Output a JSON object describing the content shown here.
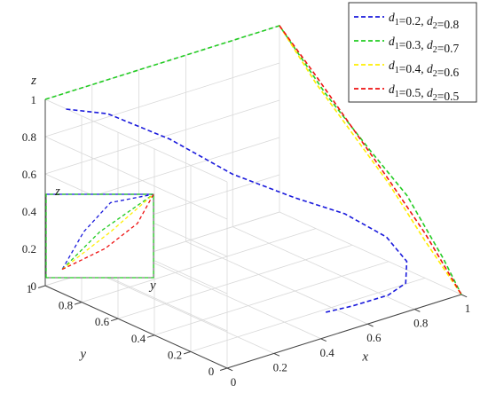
{
  "chart_data": {
    "type": "line",
    "projection": "3d-perspective",
    "xlabel": "x",
    "ylabel": "y",
    "zlabel": "z",
    "xlim": [
      0,
      1
    ],
    "ylim": [
      0,
      1
    ],
    "zlim": [
      0,
      1
    ],
    "x_ticks": [
      "0",
      "0.2",
      "0.4",
      "0.6",
      "0.8",
      "1"
    ],
    "y_ticks": [
      "0",
      "0.2",
      "0.4",
      "0.6",
      "0.8",
      "1"
    ],
    "z_ticks": [
      "0",
      "0.2",
      "0.4",
      "0.6",
      "0.8",
      "1"
    ],
    "grid": true,
    "legend_position": "top-right",
    "series": [
      {
        "name": "d1=0.2, d2=0.8",
        "label_parts": [
          "0.2",
          "0.8"
        ],
        "color": "#1a1adc",
        "style": "dashed",
        "points": [
          [
            0.05,
            0.95,
            0.95
          ],
          [
            0.15,
            0.85,
            0.93
          ],
          [
            0.3,
            0.7,
            0.8
          ],
          [
            0.45,
            0.55,
            0.62
          ],
          [
            0.6,
            0.4,
            0.5
          ],
          [
            0.72,
            0.28,
            0.42
          ],
          [
            0.82,
            0.18,
            0.3
          ],
          [
            0.86,
            0.12,
            0.18
          ],
          [
            0.84,
            0.1,
            0.08
          ],
          [
            0.78,
            0.12,
            0.03
          ],
          [
            0.65,
            0.15,
            0.01
          ],
          [
            0.55,
            0.18,
            0.0
          ]
        ]
      },
      {
        "name": "d1=0.3, d2=0.7",
        "label_parts": [
          "0.3",
          "0.7"
        ],
        "color": "#22cc22",
        "style": "dashed",
        "points": [
          [
            0.0,
            1.0,
            1.0
          ],
          [
            0.3,
            1.0,
            1.0
          ],
          [
            0.6,
            1.0,
            1.0
          ],
          [
            1.0,
            1.0,
            1.0
          ],
          [
            1.0,
            0.75,
            0.75
          ],
          [
            1.0,
            0.5,
            0.55
          ],
          [
            1.0,
            0.3,
            0.4
          ],
          [
            1.0,
            0.1,
            0.15
          ],
          [
            1.0,
            0.0,
            0.0
          ]
        ]
      },
      {
        "name": "d1=0.4, d2=0.6",
        "label_parts": [
          "0.4",
          "0.6"
        ],
        "color": "#ffee00",
        "style": "dashed",
        "points": [
          [
            1.0,
            1.0,
            1.0
          ],
          [
            1.0,
            0.8,
            0.78
          ],
          [
            1.0,
            0.6,
            0.6
          ],
          [
            1.0,
            0.4,
            0.42
          ],
          [
            1.0,
            0.2,
            0.2
          ],
          [
            1.0,
            0.0,
            0.0
          ]
        ]
      },
      {
        "name": "d1=0.5, d2=0.5",
        "label_parts": [
          "0.5",
          "0.5"
        ],
        "color": "#ee1111",
        "style": "dashed",
        "points": [
          [
            1.0,
            1.0,
            1.0
          ],
          [
            1.0,
            0.8,
            0.82
          ],
          [
            1.0,
            0.6,
            0.63
          ],
          [
            1.0,
            0.4,
            0.44
          ],
          [
            1.0,
            0.2,
            0.24
          ],
          [
            1.0,
            0.0,
            0.0
          ]
        ]
      }
    ],
    "inset": {
      "zlabel": "z",
      "ylabel": "y",
      "series": [
        {
          "color": "#1a1adc",
          "style": "solid",
          "points": [
            [
              0,
              1
            ],
            [
              1,
              1
            ]
          ]
        },
        {
          "color": "#1a1adc",
          "style": "dashed",
          "points": [
            [
              0.15,
              0.1
            ],
            [
              0.35,
              0.55
            ],
            [
              0.6,
              0.9
            ],
            [
              1,
              1
            ]
          ]
        },
        {
          "color": "#22cc22",
          "style": "dashed",
          "points": [
            [
              0,
              0
            ],
            [
              0,
              1
            ],
            [
              1,
              1
            ],
            [
              1,
              0
            ],
            [
              0,
              0
            ]
          ]
        },
        {
          "color": "#22cc22",
          "style": "dashed",
          "points": [
            [
              0.15,
              0.1
            ],
            [
              0.5,
              0.55
            ],
            [
              1,
              1
            ]
          ]
        },
        {
          "color": "#ffee00",
          "style": "dashed",
          "points": [
            [
              0.15,
              0.1
            ],
            [
              0.6,
              0.55
            ],
            [
              1,
              1
            ]
          ]
        },
        {
          "color": "#ee1111",
          "style": "dashed",
          "points": [
            [
              0.15,
              0.1
            ],
            [
              0.55,
              0.35
            ],
            [
              0.85,
              0.65
            ],
            [
              1,
              1
            ]
          ]
        }
      ]
    }
  }
}
